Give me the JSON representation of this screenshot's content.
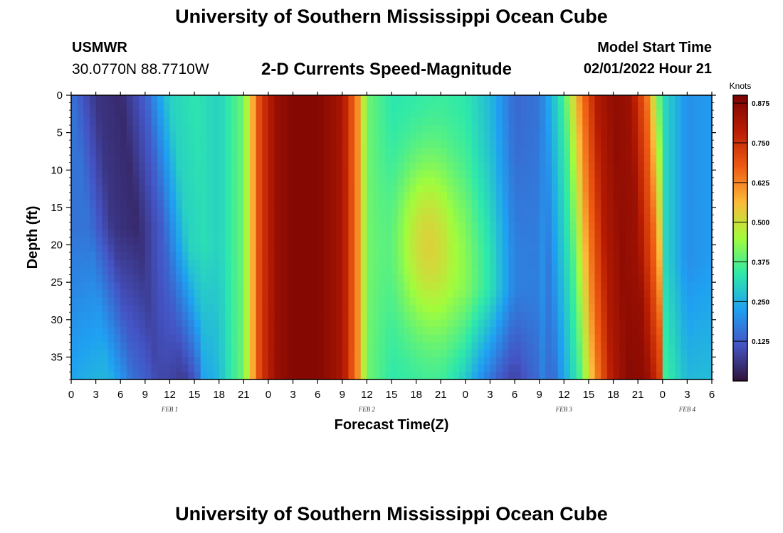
{
  "header": {
    "title": "University of Southern Mississippi Ocean Cube",
    "station": "USMWR",
    "coordinates": "30.0770N  88.7710W",
    "subtitle": "2-D Currents Speed-Magnitude",
    "model_start_label": "Model Start Time",
    "model_start_value": "02/01/2022 Hour 21"
  },
  "footer": {
    "title": "University of Southern Mississippi Ocean Cube"
  },
  "chart_data": {
    "type": "heatmap",
    "xlabel": "Forecast Time(Z)",
    "ylabel": "Depth (ft)",
    "x_tick_labels": [
      "0",
      "3",
      "6",
      "9",
      "12",
      "15",
      "18",
      "21",
      "0",
      "3",
      "6",
      "9",
      "12",
      "15",
      "18",
      "21",
      "0",
      "3",
      "6",
      "9",
      "12",
      "15",
      "18",
      "21",
      "0",
      "3",
      "6"
    ],
    "date_labels": [
      {
        "label": "FEB 1",
        "at_tick": 4
      },
      {
        "label": "FEB 2",
        "at_tick": 12
      },
      {
        "label": "FEB 3",
        "at_tick": 20
      },
      {
        "label": "FEB 4",
        "at_tick": 25
      }
    ],
    "y_ticks": [
      0,
      5,
      10,
      15,
      20,
      25,
      30,
      35
    ],
    "ylim": [
      0,
      38
    ],
    "colorbar": {
      "title": "Knots",
      "tick_labels": [
        "0.875",
        "0.750",
        "0.625",
        "0.500",
        "0.375",
        "0.250",
        "0.125"
      ],
      "tick_values": [
        0.875,
        0.75,
        0.625,
        0.5,
        0.375,
        0.25,
        0.125
      ],
      "range": [
        0,
        0.9
      ],
      "colors": [
        "#30123b",
        "#4454c4",
        "#1fa0f2",
        "#2ee9aa",
        "#a2fc3c",
        "#fcba39",
        "#ee5a12",
        "#b91d03",
        "#7a0403"
      ]
    },
    "speed_profile_surface": [
      {
        "hour": 0,
        "value": 0.16
      },
      {
        "hour": 3,
        "value": 0.06
      },
      {
        "hour": 6,
        "value": 0.04
      },
      {
        "hour": 9,
        "value": 0.13
      },
      {
        "hour": 12,
        "value": 0.3
      },
      {
        "hour": 15,
        "value": 0.33
      },
      {
        "hour": 18,
        "value": 0.3
      },
      {
        "hour": 21,
        "value": 0.4
      },
      {
        "hour": 23,
        "value": 0.72
      },
      {
        "hour": 25,
        "value": 0.85
      },
      {
        "hour": 27,
        "value": 0.88
      },
      {
        "hour": 30,
        "value": 0.88
      },
      {
        "hour": 33,
        "value": 0.82
      },
      {
        "hour": 35,
        "value": 0.6
      },
      {
        "hour": 36,
        "value": 0.4
      },
      {
        "hour": 39,
        "value": 0.33
      },
      {
        "hour": 42,
        "value": 0.33
      },
      {
        "hour": 45,
        "value": 0.34
      },
      {
        "hour": 48,
        "value": 0.33
      },
      {
        "hour": 51,
        "value": 0.26
      },
      {
        "hour": 54,
        "value": 0.14
      },
      {
        "hour": 57,
        "value": 0.16
      },
      {
        "hour": 60,
        "value": 0.36
      },
      {
        "hour": 62,
        "value": 0.62
      },
      {
        "hour": 64,
        "value": 0.8
      },
      {
        "hour": 66,
        "value": 0.86
      },
      {
        "hour": 68,
        "value": 0.84
      },
      {
        "hour": 70,
        "value": 0.66
      },
      {
        "hour": 72,
        "value": 0.32
      },
      {
        "hour": 75,
        "value": 0.2
      },
      {
        "hour": 78,
        "value": 0.22
      }
    ]
  }
}
